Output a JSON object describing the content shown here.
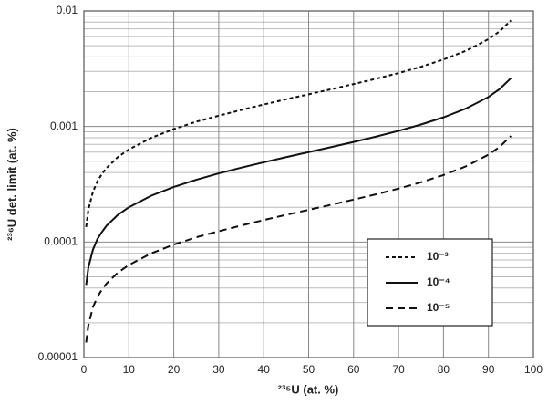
{
  "chart_data": {
    "type": "line",
    "x_label": "²³⁵U (at. %)",
    "y_label": "²³⁶U det. limit (at. %)",
    "x": [
      0.5,
      1,
      2,
      3,
      4,
      5,
      7.5,
      10,
      15,
      20,
      25,
      30,
      35,
      40,
      45,
      50,
      55,
      60,
      65,
      70,
      75,
      80,
      85,
      90,
      92.5,
      95
    ],
    "series": [
      {
        "name": "10⁻³",
        "color": "#111111",
        "dash": "short",
        "values": [
          0.000135,
          0.000191,
          0.000272,
          0.000334,
          0.000388,
          0.000436,
          0.000541,
          0.000633,
          0.000798,
          0.00095,
          0.0011,
          0.00124,
          0.00139,
          0.00155,
          0.00172,
          0.0019,
          0.0021,
          0.00233,
          0.00259,
          0.0029,
          0.00329,
          0.0038,
          0.00452,
          0.0057,
          0.00667,
          0.00828
        ]
      },
      {
        "name": "10⁻⁴",
        "color": "#111111",
        "dash": "solid",
        "values": [
          4.25e-05,
          6.03e-05,
          8.57e-05,
          0.000106,
          0.000122,
          0.000138,
          0.000171,
          0.0002,
          0.000252,
          0.0003,
          0.000346,
          0.000393,
          0.00044,
          0.00049,
          0.000543,
          0.0006,
          0.000663,
          0.000735,
          0.000818,
          0.000917,
          0.00104,
          0.0012,
          0.00143,
          0.0018,
          0.00211,
          0.00262
        ]
      },
      {
        "name": "10⁻⁵",
        "color": "#111111",
        "dash": "long",
        "values": [
          1.35e-05,
          1.91e-05,
          2.72e-05,
          3.34e-05,
          3.88e-05,
          4.36e-05,
          5.41e-05,
          6.33e-05,
          7.98e-05,
          9.5e-05,
          0.00011,
          0.000124,
          0.000139,
          0.000155,
          0.000172,
          0.00019,
          0.00021,
          0.000233,
          0.000259,
          0.00029,
          0.000329,
          0.00038,
          0.000452,
          0.00057,
          0.000667,
          0.000828
        ]
      }
    ],
    "xlim": [
      0,
      100
    ],
    "xticks": [
      0,
      10,
      20,
      30,
      40,
      50,
      60,
      70,
      80,
      90,
      100
    ],
    "ylim": [
      1e-05,
      0.01
    ],
    "yticks": [
      1e-05,
      0.0001,
      0.001,
      0.01
    ],
    "yminor_ticks": [
      2e-05,
      3e-05,
      4e-05,
      5e-05,
      6e-05,
      7e-05,
      8e-05,
      9e-05,
      0.0002,
      0.0003,
      0.0004,
      0.0005,
      0.0006,
      0.0007,
      0.0008,
      0.0009,
      0.002,
      0.003,
      0.004,
      0.005,
      0.006,
      0.007,
      0.008,
      0.009
    ],
    "y_log": true,
    "grid": true
  }
}
